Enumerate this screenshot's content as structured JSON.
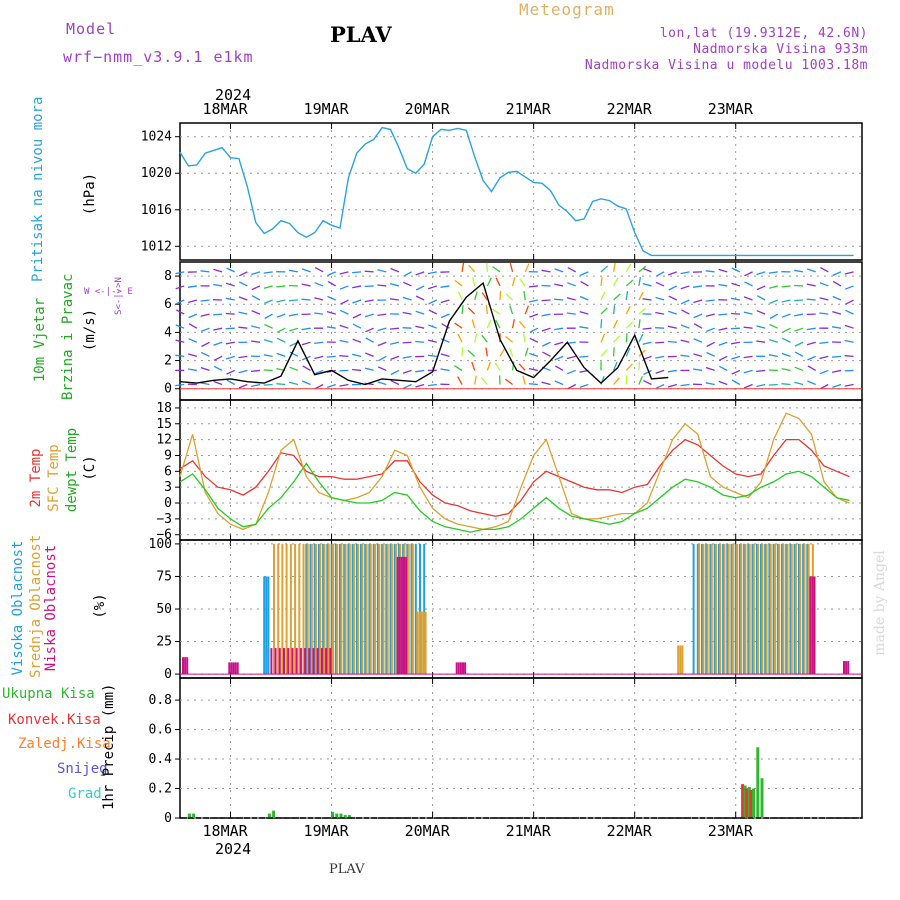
{
  "header": {
    "model_label": "Model",
    "model_name": "wrf−nmm_v3.9.1  e1km",
    "station": "PLAV",
    "product": "Meteogram",
    "coords": "lon,lat (19.9312E, 42.6N)",
    "elevation": "Nadmorska Visina 933m",
    "model_elevation": "Nadmorska Visina u modelu 1003.18m",
    "footer_station": "PLAV",
    "credit": "made by Angel"
  },
  "colors": {
    "pressure": "#2aa3e0",
    "t2m": "#ee3333",
    "sfc": "#e0a030",
    "dewpt": "#22cc22",
    "cloud_high": "#1ea0e8",
    "cloud_mid": "#e0a030",
    "cloud_low": "#cc1188",
    "precip_total": "#2fb82f",
    "precip_conv": "#ee3333",
    "precip_grid": "#ff7f27",
    "snow": "#5555dd",
    "graupel": "#33cccc",
    "header_purple": "#a040c8",
    "header_gold": "#e0b060"
  },
  "panels": {
    "pressure": {
      "title": "Pritisak na nivou mora",
      "unit": "(hPa)"
    },
    "wind": {
      "title1": "10m Vjetar",
      "title2": "Brzina i Pravac",
      "unit": "(m/s)",
      "compass": "W <-|-> E",
      "compass_ns": "S<-|->N"
    },
    "temp": {
      "label_t2m": "2m Temp",
      "label_sfc": "SFC Temp",
      "label_dew": "dewpt Temp",
      "unit": "(C)"
    },
    "cloud": {
      "label_high": "Visoka Oblacnost",
      "label_mid": "Srednja Oblacnost",
      "label_low": "Niska Oblacnost",
      "unit": "(%)"
    },
    "precip": {
      "leg_total": "Ukupna Kisa",
      "leg_conv": "Konvek.Kisa",
      "leg_grid": "Zaledj.Kisa",
      "leg_snow": "Snijeg",
      "leg_graupel": "Grad",
      "unit": "1hr Precip (mm)"
    }
  },
  "axis": {
    "year": "2024",
    "days": [
      "18MAR",
      "19MAR",
      "20MAR",
      "21MAR",
      "22MAR",
      "23MAR"
    ]
  },
  "chart_data": [
    {
      "type": "line",
      "name": "pressure",
      "ylim": [
        1010.5,
        1025.5
      ],
      "yticks": [
        1012,
        1016,
        1020,
        1024
      ],
      "x_hours": [
        0,
        2,
        4,
        6,
        8,
        10,
        12,
        14,
        16,
        18,
        20,
        22,
        24,
        26,
        28,
        30,
        32,
        34,
        36,
        38,
        40,
        42,
        44,
        46,
        48,
        50,
        52,
        54,
        56,
        58,
        60,
        62,
        64,
        66,
        68,
        70,
        72,
        74,
        76,
        78,
        80,
        82,
        84,
        86,
        88,
        90,
        92,
        94,
        96,
        98,
        100,
        102,
        104,
        106,
        108,
        110,
        112,
        114,
        116,
        118,
        120,
        122,
        124,
        126,
        128,
        130,
        132,
        134,
        136,
        138,
        140,
        142,
        144,
        146,
        148,
        150,
        152,
        154,
        156,
        158,
        160
      ],
      "values": [
        1022.3,
        1020.8,
        1020.9,
        1022.2,
        1022.5,
        1022.8,
        1021.7,
        1021.6,
        1018.5,
        1014.6,
        1013.4,
        1013.9,
        1014.8,
        1014.5,
        1013.5,
        1013,
        1013.5,
        1014.8,
        1014.3,
        1014,
        1019.5,
        1022.2,
        1023.2,
        1023.7,
        1025,
        1024.8,
        1022.8,
        1020.5,
        1020,
        1021,
        1024,
        1024.8,
        1024.7,
        1024.9,
        1024.7,
        1021.8,
        1019.2,
        1018,
        1019.5,
        1020.1,
        1020.2,
        1019.6,
        1019,
        1018.9,
        1018.1,
        1016.5,
        1015.8,
        1014.8,
        1015,
        1016.9,
        1017.2,
        1017,
        1016.4,
        1016.1,
        1013.5,
        1011.5,
        1011,
        1011,
        1011,
        1011,
        1011,
        1011,
        1011,
        1011,
        1011,
        1011,
        1011,
        1011,
        1011,
        1011,
        1011,
        1011,
        1011,
        1011,
        1011,
        1011,
        1011,
        1011,
        1011,
        1011,
        1011
      ]
    },
    {
      "type": "line",
      "name": "wind_speed",
      "ylim": [
        -0.8,
        9
      ],
      "yticks": [
        0,
        2,
        4,
        6,
        8
      ],
      "x_hours": [
        0,
        4,
        8,
        12,
        16,
        20,
        24,
        28,
        32,
        36,
        40,
        44,
        48,
        52,
        56,
        60,
        64,
        68,
        72,
        76,
        80,
        84,
        88,
        92,
        96,
        100,
        104,
        108,
        112,
        116
      ],
      "values": [
        0.5,
        0.4,
        0.6,
        0.7,
        0.5,
        0.4,
        0.9,
        3.4,
        1.0,
        1.3,
        0.6,
        0.3,
        0.7,
        0.6,
        0.5,
        1.2,
        4.8,
        6.5,
        7.5,
        3.5,
        1.3,
        0.8,
        2.0,
        3.3,
        1.5,
        0.4,
        1.5,
        3.8,
        0.7,
        0.8
      ]
    },
    {
      "type": "line",
      "ylim": [
        -7,
        19.5
      ],
      "yticks": [
        -6,
        -3,
        0,
        3,
        6,
        9,
        12,
        15,
        18
      ],
      "x_hours": [
        0,
        3,
        6,
        9,
        12,
        15,
        18,
        21,
        24,
        27,
        30,
        33,
        36,
        39,
        42,
        45,
        48,
        51,
        54,
        57,
        60,
        63,
        66,
        69,
        72,
        75,
        78,
        81,
        84,
        87,
        90,
        93,
        96,
        99,
        102,
        105,
        108,
        111,
        114,
        117,
        120,
        123,
        126,
        129,
        132,
        135,
        138,
        141,
        144,
        147,
        150,
        153,
        156,
        159
      ],
      "series": [
        {
          "name": "2m Temp",
          "values": [
            6.5,
            8,
            5,
            3,
            2.5,
            1.5,
            3,
            6,
            9.5,
            9,
            6,
            5,
            5,
            4.5,
            4.5,
            5,
            5.5,
            8,
            8,
            4,
            1.5,
            0,
            -0.5,
            -1.5,
            -2,
            -2.5,
            -2,
            0.5,
            4,
            6,
            5,
            4,
            3,
            2.5,
            2.5,
            2,
            3,
            3.5,
            7,
            10,
            12,
            11,
            9,
            7,
            5.5,
            5,
            5.5,
            9,
            12,
            12,
            10,
            7,
            6,
            5
          ]
        },
        {
          "name": "SFC Temp",
          "values": [
            5,
            13,
            2,
            -2,
            -4,
            -5,
            -4,
            2,
            10,
            12,
            5,
            2,
            1,
            0.5,
            1,
            2,
            5,
            10,
            9,
            3,
            -1,
            -3,
            -4,
            -4.5,
            -5,
            -4.5,
            -3.5,
            3,
            9,
            12,
            5,
            -2,
            -3,
            -3,
            -2.5,
            -2,
            -2,
            0,
            6,
            12,
            15,
            13,
            5,
            3,
            2,
            1,
            4,
            12,
            17,
            16,
            13,
            4,
            1,
            0
          ]
        },
        {
          "name": "dewpt Temp",
          "values": [
            4,
            5.5,
            2.5,
            -1,
            -3,
            -4.5,
            -4,
            -1,
            1,
            4,
            7.5,
            4,
            1,
            0.5,
            0,
            0,
            0.5,
            2,
            1.5,
            -1.5,
            -3.5,
            -4.5,
            -5,
            -5.5,
            -5,
            -5,
            -4.5,
            -3,
            -1,
            1,
            -1,
            -2.5,
            -3,
            -3.5,
            -4,
            -3.5,
            -2,
            -1,
            1,
            3,
            4.5,
            4,
            3,
            1.5,
            1,
            1.5,
            3,
            4,
            5.5,
            6,
            5,
            3,
            1,
            0.5
          ]
        }
      ]
    },
    {
      "type": "bar",
      "name": "cloud",
      "ylim": [
        -3,
        103
      ],
      "yticks": [
        0,
        25,
        50,
        75,
        100
      ],
      "series": [
        {
          "name": "Visoka Oblacnost",
          "ranges": [
            [
              20,
              21,
              75
            ],
            [
              30,
              58,
              100
            ],
            [
              122,
              149,
              100
            ]
          ]
        },
        {
          "name": "Srednja Oblacnost",
          "ranges": [
            [
              22,
              29,
              100
            ],
            [
              30,
              55,
              100
            ],
            [
              56,
              58,
              48
            ],
            [
              118,
              119,
              22
            ],
            [
              123,
              150,
              100
            ]
          ]
        },
        {
          "name": "Niska Oblacnost",
          "ranges": [
            [
              1,
              2,
              13
            ],
            [
              12,
              14,
              9
            ],
            [
              22,
              36,
              20
            ],
            [
              52,
              54,
              90
            ],
            [
              66,
              68,
              9
            ],
            [
              150,
              151,
              75
            ],
            [
              158,
              159,
              10
            ]
          ]
        }
      ]
    },
    {
      "type": "bar",
      "name": "precip",
      "ylim": [
        0,
        0.95
      ],
      "yticks": [
        0,
        0.2,
        0.4,
        0.6,
        0.8
      ],
      "x_hours": [
        2,
        3,
        21,
        22,
        36,
        37,
        38,
        39,
        40,
        134,
        135,
        136,
        137,
        138
      ],
      "series": [
        {
          "name": "Ukupna Kisa",
          "values": [
            0.03,
            0.03,
            0.03,
            0.05,
            0.04,
            0.03,
            0.03,
            0.02,
            0.02,
            0.22,
            0.21,
            0.2,
            0.48,
            0.27
          ]
        },
        {
          "name": "Konvek.Kisa",
          "values": [
            0,
            0,
            0,
            0,
            0,
            0,
            0,
            0,
            0,
            0.23,
            0.2,
            0.19,
            0,
            0
          ]
        }
      ]
    }
  ]
}
